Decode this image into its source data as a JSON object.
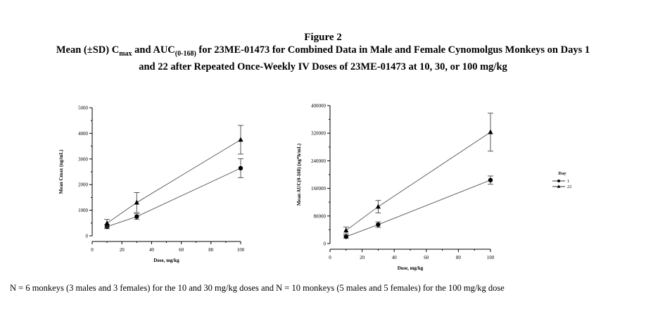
{
  "figure": {
    "number_label": "Figure 2",
    "title_line1_prefix": "Mean (±SD) C",
    "title_line1_sub1": "max",
    "title_line1_mid": " and AUC",
    "title_line1_sub2": "(0-168)",
    "title_line1_suffix": " for 23ME-01473 for Combined Data in Male and Female Cynomolgus Monkeys on Days 1",
    "title_line2": "and 22 after Repeated Once-Weekly IV Doses of 23ME-01473 at 10, 30, or 100 mg/kg"
  },
  "footnote": "N = 6 monkeys (3 males and 3 females) for the 10 and 30 mg/kg doses and N =  10 monkeys (5 males and 5 females) for the 100 mg/kg dose",
  "chart_data": [
    {
      "type": "line",
      "xlabel": "Dose, mg/kg",
      "ylabel": "Mean Cmax (ng/mL)",
      "xlim": [
        0,
        100
      ],
      "ylim": [
        0,
        5000
      ],
      "xticks": [
        0,
        20,
        40,
        60,
        80,
        100
      ],
      "yticks": [
        0,
        1000,
        2000,
        3000,
        4000,
        5000
      ],
      "series": [
        {
          "name": "1",
          "marker": "circle",
          "x": [
            10,
            30,
            100
          ],
          "y": [
            360,
            750,
            2640
          ],
          "sd": [
            80,
            110,
            370
          ]
        },
        {
          "name": "22",
          "marker": "triangle",
          "x": [
            10,
            30,
            100
          ],
          "y": [
            490,
            1300,
            3750
          ],
          "sd": [
            150,
            390,
            560
          ]
        }
      ]
    },
    {
      "type": "line",
      "xlabel": "Dose, mg/kg",
      "ylabel": "Mean AUC(0-168) (ng*h/mL)",
      "xlim": [
        0,
        100
      ],
      "ylim": [
        0,
        400000
      ],
      "xticks": [
        0,
        20,
        40,
        60,
        80,
        100
      ],
      "yticks": [
        0,
        80000,
        160000,
        240000,
        320000,
        400000
      ],
      "series": [
        {
          "name": "1",
          "marker": "circle",
          "x": [
            10,
            30,
            100
          ],
          "y": [
            20000,
            55000,
            184000
          ],
          "sd": [
            4000,
            8000,
            12000
          ]
        },
        {
          "name": "22",
          "marker": "triangle",
          "x": [
            10,
            30,
            100
          ],
          "y": [
            38000,
            107000,
            323000
          ],
          "sd": [
            10000,
            18000,
            55000
          ]
        }
      ],
      "legend": {
        "title": "Day",
        "position": "right"
      }
    }
  ]
}
